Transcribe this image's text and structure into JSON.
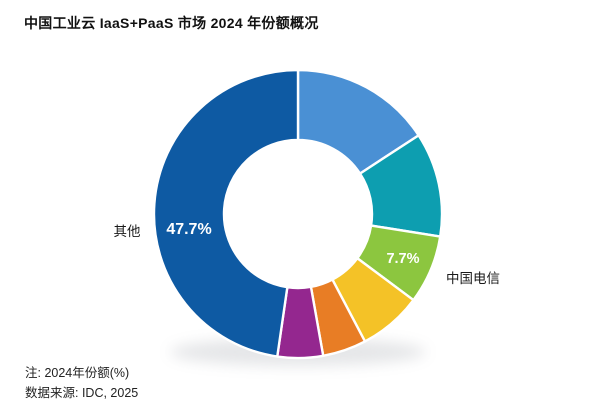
{
  "title": "中国工业云 IaaS+PaaS 市场 2024 年份额概况",
  "notes": {
    "note": "注: 2024年份额(%)",
    "source": "数据来源: IDC, 2025"
  },
  "chart_data": {
    "type": "pie",
    "subtype": "donut",
    "title": "中国工业云 IaaS+PaaS 市场 2024 年份额概况",
    "unit": "% market share, 2024",
    "start_angle_deg": 0,
    "direction": "clockwise",
    "legend_position": "none",
    "segments": [
      {
        "name": "",
        "value": 15.8,
        "value_label": "",
        "color": "#4a90d4"
      },
      {
        "name": "",
        "value": 11.7,
        "value_label": "",
        "color": "#0d9eb0"
      },
      {
        "name": "中国电信",
        "value": 7.7,
        "value_label": "7.7%",
        "color": "#8cc63f"
      },
      {
        "name": "",
        "value": 7.1,
        "value_label": "",
        "color": "#f4c227"
      },
      {
        "name": "",
        "value": 4.9,
        "value_label": "",
        "color": "#e87d25"
      },
      {
        "name": "",
        "value": 5.1,
        "value_label": "",
        "color": "#94278f"
      },
      {
        "name": "其他",
        "value": 47.7,
        "value_label": "47.7%",
        "color": "#0e5aa3"
      }
    ]
  }
}
